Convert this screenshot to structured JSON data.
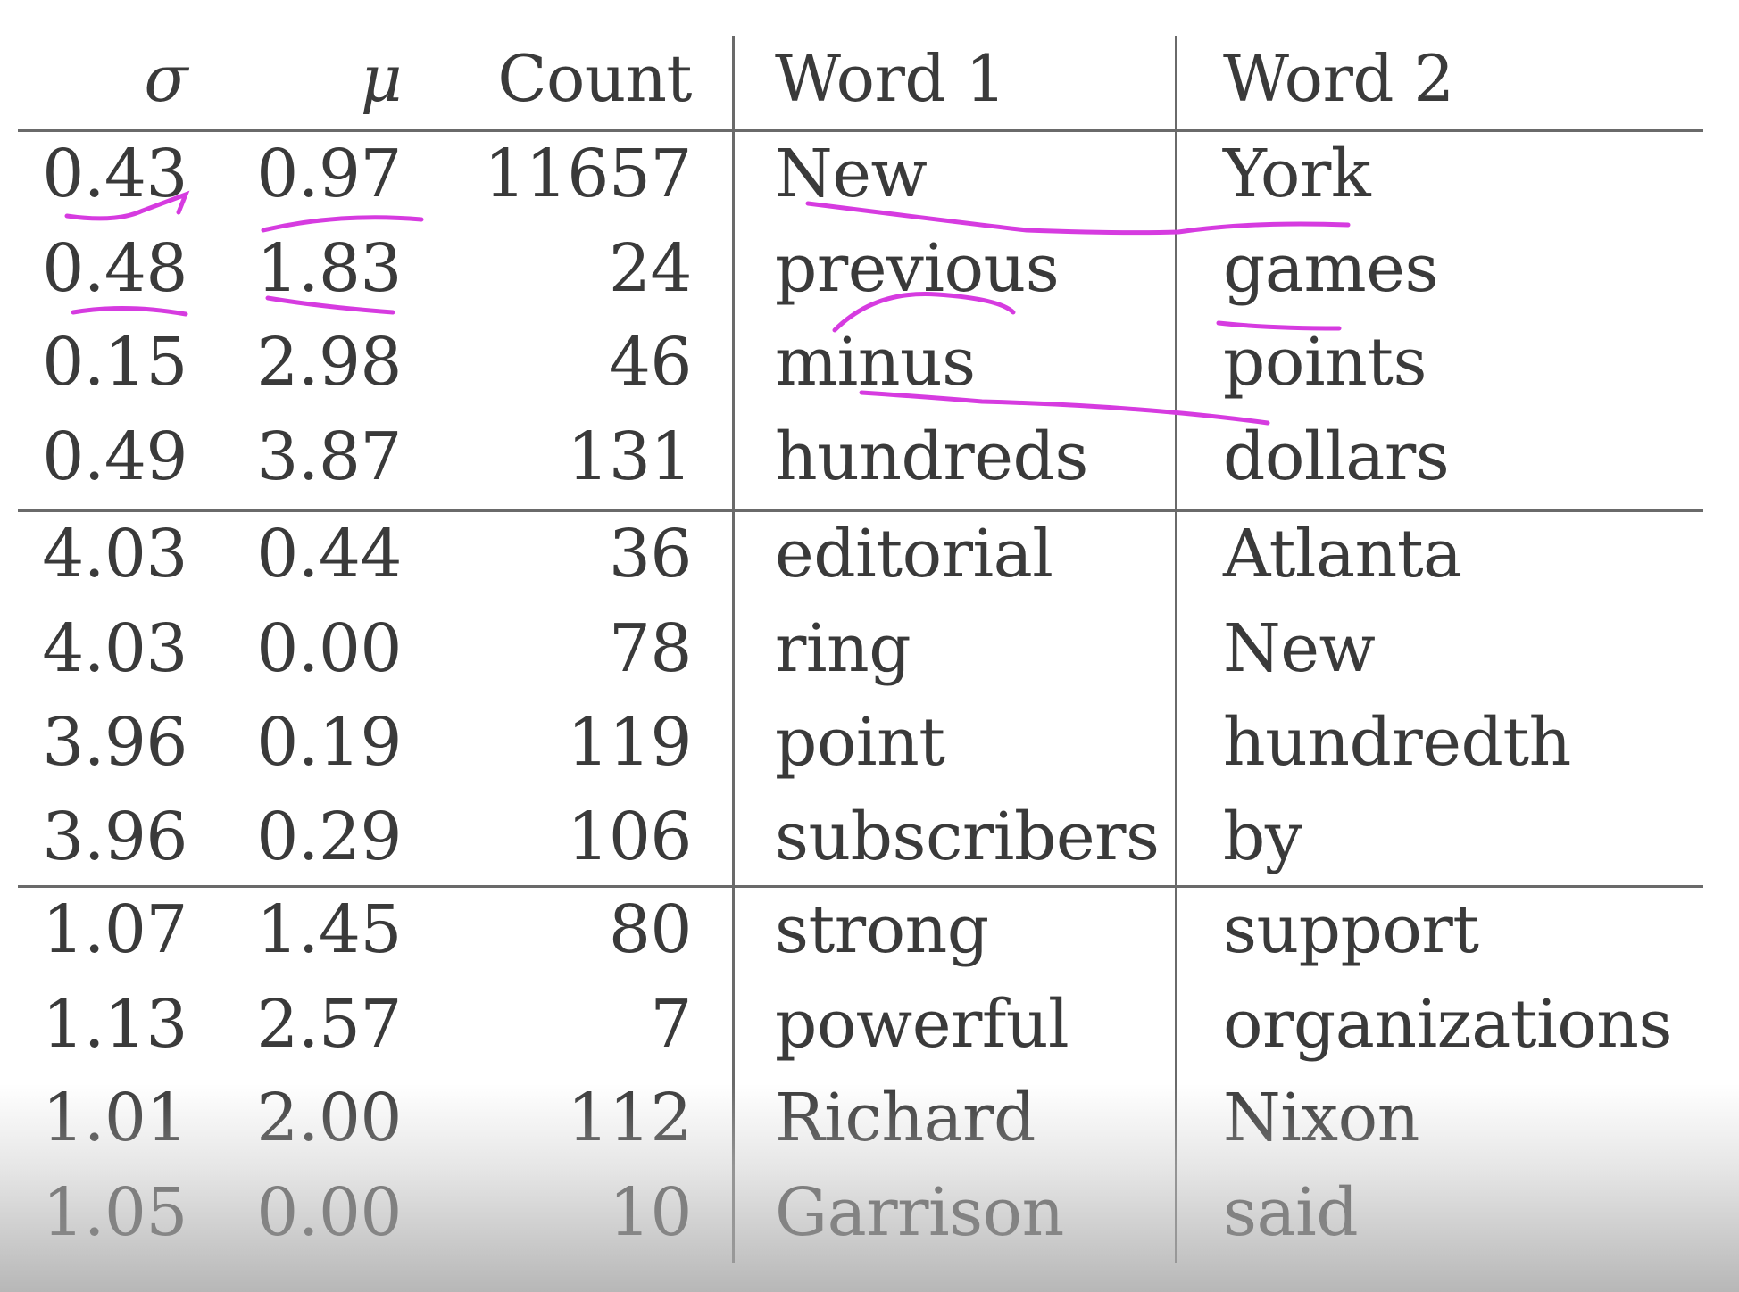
{
  "table": {
    "headers": [
      "σ",
      "μ",
      "Count",
      "Word 1",
      "Word 2"
    ],
    "groups": [
      [
        [
          "0.43",
          "0.97",
          "11657",
          "New",
          "York"
        ],
        [
          "0.48",
          "1.83",
          "24",
          "previous",
          "games"
        ],
        [
          "0.15",
          "2.98",
          "46",
          "minus",
          "points"
        ],
        [
          "0.49",
          "3.87",
          "131",
          "hundreds",
          "dollars"
        ]
      ],
      [
        [
          "4.03",
          "0.44",
          "36",
          "editorial",
          "Atlanta"
        ],
        [
          "4.03",
          "0.00",
          "78",
          "ring",
          "New"
        ],
        [
          "3.96",
          "0.19",
          "119",
          "point",
          "hundredth"
        ],
        [
          "3.96",
          "0.29",
          "106",
          "subscribers",
          "by"
        ]
      ],
      [
        [
          "1.07",
          "1.45",
          "80",
          "strong",
          "support"
        ],
        [
          "1.13",
          "2.57",
          "7",
          "powerful",
          "organizations"
        ],
        [
          "1.01",
          "2.00",
          "112",
          "Richard",
          "Nixon"
        ],
        [
          "1.05",
          "0.00",
          "10",
          "Garrison",
          "said"
        ]
      ]
    ]
  },
  "annotations": {
    "ink_color": "#d63be0",
    "marks": [
      "underline-sigma-0.43",
      "underline-mu-0.97",
      "underline-sigma-0.48",
      "underline-mu-1.83",
      "link-New-York",
      "underline-previous",
      "underline-games",
      "link-minus-dollars"
    ]
  }
}
